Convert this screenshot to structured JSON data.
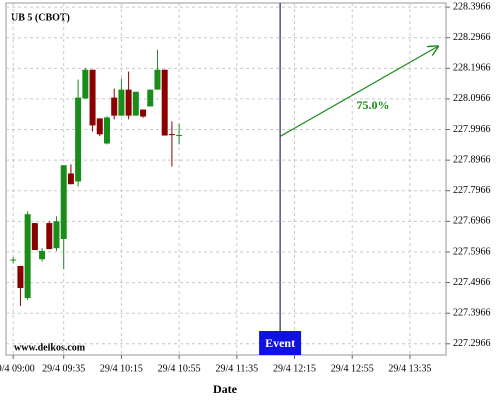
{
  "chart_data": {
    "type": "candlestick",
    "title": "UB 5 (CBOT)",
    "xlabel": "Date",
    "source": "www.delkos.com",
    "x": [
      "29/4 09:00",
      "29/4 09:05",
      "29/4 09:10",
      "29/4 09:15",
      "29/4 09:20",
      "29/4 09:25",
      "29/4 09:30",
      "29/4 09:35",
      "29/4 09:40",
      "29/4 09:45",
      "29/4 09:50",
      "29/4 09:55",
      "29/4 10:00",
      "29/4 10:05",
      "29/4 10:10",
      "29/4 10:15",
      "29/4 10:20",
      "29/4 10:25",
      "29/4 10:30",
      "29/4 10:35",
      "29/4 10:40",
      "29/4 10:45",
      "29/4 10:50",
      "29/4 10:55"
    ],
    "open": [
      227.57,
      227.551,
      227.446,
      227.691,
      227.573,
      227.691,
      227.609,
      227.639,
      227.853,
      227.827,
      228.098,
      228.192,
      228.033,
      227.951,
      228.101,
      228.042,
      228.127,
      228.042,
      228.062,
      228.072,
      228.127,
      228.192,
      227.98,
      227.977
    ],
    "high": [
      227.58,
      227.551,
      227.73,
      227.691,
      227.61,
      227.697,
      227.713,
      227.88,
      227.883,
      228.16,
      228.198,
      228.192,
      228.033,
      228.04,
      228.13,
      228.163,
      228.186,
      228.12,
      228.062,
      228.127,
      228.257,
      228.192,
      228.023,
      228.016
    ],
    "low": [
      227.56,
      227.42,
      227.44,
      227.603,
      227.565,
      227.606,
      227.6,
      227.541,
      227.818,
      227.81,
      228.098,
      227.99,
      227.975,
      227.948,
      228.03,
      228.042,
      228.03,
      228.042,
      228.035,
      228.072,
      228.127,
      227.977,
      227.876,
      227.948
    ],
    "close": [
      227.57,
      227.479,
      227.72,
      227.603,
      227.6,
      227.606,
      227.697,
      227.88,
      227.818,
      228.101,
      228.192,
      228.01,
      227.981,
      228.036,
      228.042,
      228.127,
      228.042,
      228.12,
      228.039,
      228.127,
      228.192,
      227.977,
      227.977,
      227.977
    ],
    "up_color": "#1a8c1a",
    "down_color": "#8b0000",
    "xlim": [
      "29/4 08:55",
      "29/4 14:00"
    ],
    "xticks": [
      "29/4 09:00",
      "29/4 09:35",
      "29/4 10:15",
      "29/4 10:55",
      "29/4 11:35",
      "29/4 12:15",
      "29/4 12:55",
      "29/4 13:35"
    ],
    "ylim": [
      227.26,
      228.41
    ],
    "yticks": [
      227.2966,
      227.3966,
      227.4966,
      227.5966,
      227.6966,
      227.7966,
      227.8966,
      227.9966,
      228.0966,
      228.1966,
      228.2966,
      228.3966
    ],
    "grid": true,
    "event": {
      "label": "Event",
      "x": "29/4 12:05"
    },
    "arrow": {
      "x0": "29/4 12:05",
      "y0": 227.974,
      "x1": "29/4 13:55",
      "y1": 228.27,
      "label": "75.0%",
      "color": "#1a8c1a"
    }
  }
}
